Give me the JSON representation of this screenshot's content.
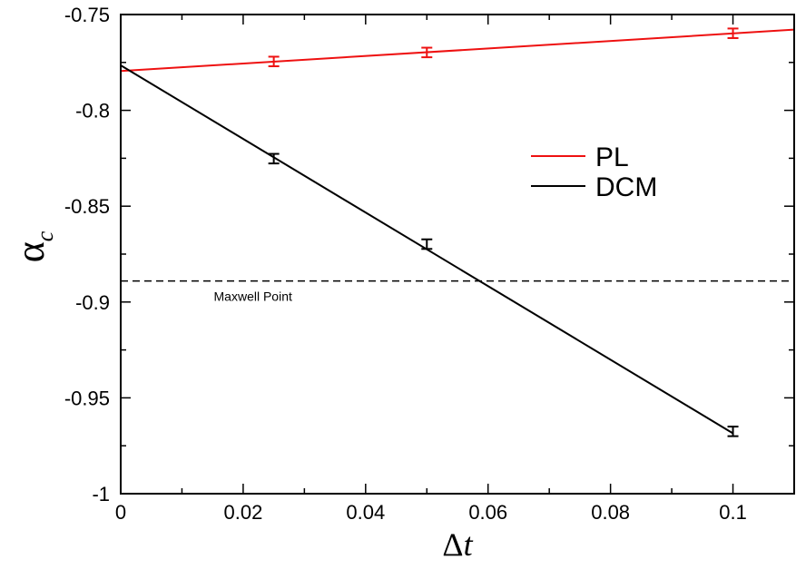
{
  "chart_data": {
    "type": "scatter",
    "xlabel": {
      "main": "Δ",
      "italic": "t"
    },
    "ylabel": {
      "main": "α",
      "sub": "c"
    },
    "xlim": [
      0,
      0.11
    ],
    "ylim": [
      -1.0,
      -0.75
    ],
    "x_ticks": [
      0,
      0.02,
      0.04,
      0.06,
      0.08,
      0.1
    ],
    "x_tick_labels": [
      "0",
      "0.02",
      "0.04",
      "0.06",
      "0.08",
      "0.1"
    ],
    "y_ticks": [
      -1.0,
      -0.95,
      -0.9,
      -0.85,
      -0.8,
      -0.75
    ],
    "y_tick_labels": [
      "-1",
      "-0.95",
      "-0.9",
      "-0.85",
      "-0.8",
      "-0.75"
    ],
    "grid": false,
    "legend": {
      "placement": "center-right",
      "entries": [
        {
          "label": "PL",
          "color": "#ee1111"
        },
        {
          "label": "DCM",
          "color": "#000000"
        }
      ]
    },
    "series": [
      {
        "label": "PL",
        "color": "#ee1111",
        "points": [
          {
            "x": 0.025,
            "y": -0.7745,
            "err": 0.0025
          },
          {
            "x": 0.05,
            "y": -0.7698,
            "err": 0.0025
          },
          {
            "x": 0.1,
            "y": -0.7598,
            "err": 0.0025
          }
        ],
        "fit": {
          "x": [
            0,
            0.11
          ],
          "y": [
            -0.7795,
            -0.7579
          ]
        }
      },
      {
        "label": "DCM",
        "color": "#000000",
        "points": [
          {
            "x": 0.025,
            "y": -0.8252,
            "err": 0.0025
          },
          {
            "x": 0.05,
            "y": -0.8698,
            "err": 0.0025
          },
          {
            "x": 0.1,
            "y": -0.9675,
            "err": 0.0025
          }
        ],
        "fit": {
          "x": [
            0,
            0.1
          ],
          "y": [
            -0.7765,
            -0.9685
          ]
        }
      }
    ],
    "reference_line": {
      "label": "Maxwell Point",
      "y": -0.889,
      "style": "dashed",
      "color": "#000000"
    }
  }
}
